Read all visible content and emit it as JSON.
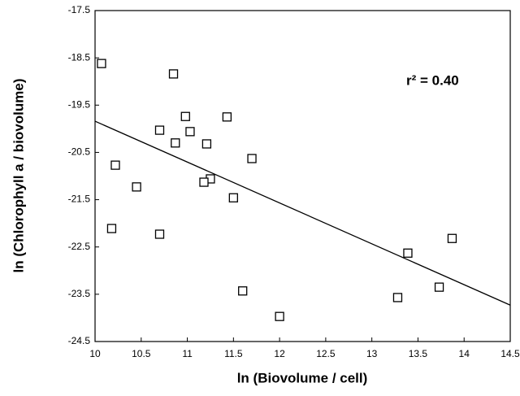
{
  "chart_data": {
    "type": "scatter",
    "x_label": "ln (Biovolume / cell)",
    "y_label": "ln (Chlorophyll a / biovolume)",
    "annotation": "r² = 0.40",
    "x": [
      10.07,
      10.85,
      10.7,
      10.98,
      11.03,
      10.87,
      11.21,
      11.43,
      11.7,
      10.22,
      10.45,
      11.25,
      11.18,
      11.5,
      10.18,
      10.7,
      11.6,
      12.0,
      13.28,
      13.39,
      13.73,
      13.87
    ],
    "values": [
      -18.62,
      -18.84,
      -20.03,
      -19.74,
      -20.06,
      -20.3,
      -20.32,
      -19.75,
      -20.63,
      -20.77,
      -21.23,
      -21.06,
      -21.13,
      -21.46,
      -22.11,
      -22.23,
      -23.43,
      -23.97,
      -23.57,
      -22.63,
      -23.35,
      -22.32
    ],
    "trendline": {
      "x": [
        10,
        14.5
      ],
      "y": [
        -19.84,
        -23.73
      ]
    },
    "color": "#000000",
    "xlim": [
      10,
      14.5
    ],
    "xticks": [
      10,
      10.5,
      11,
      11.5,
      12,
      12.5,
      13,
      13.5,
      14,
      14.5
    ],
    "ylim": [
      -24.5,
      -17.5
    ],
    "yticks": [
      -24.5,
      -23.5,
      -22.5,
      -21.5,
      -20.5,
      -19.5,
      -18.5,
      -17.5
    ],
    "grid": false
  }
}
